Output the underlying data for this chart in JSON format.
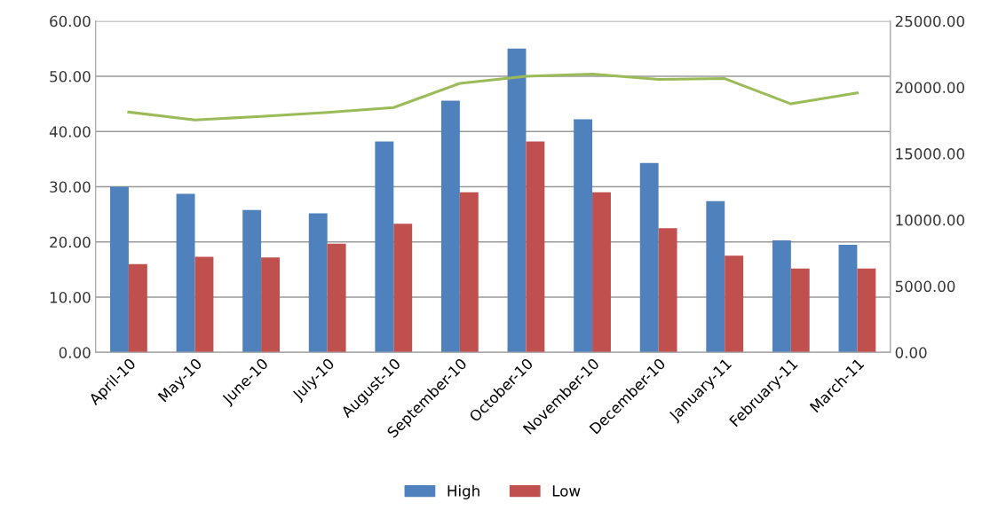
{
  "chart_data": {
    "type": "bar",
    "categories": [
      "April-10",
      "May-10",
      "June-10",
      "July-10",
      "August-10",
      "September-10",
      "October-10",
      "November-10",
      "December-10",
      "January-11",
      "February-11",
      "March-11"
    ],
    "series": [
      {
        "name": "High",
        "color": "#4f81bd",
        "values": [
          30.0,
          28.7,
          25.8,
          25.2,
          38.2,
          45.6,
          55.0,
          42.2,
          34.3,
          27.4,
          20.3,
          19.5
        ]
      },
      {
        "name": "Low",
        "color": "#c0504d",
        "values": [
          16.0,
          17.3,
          17.2,
          19.7,
          23.3,
          29.0,
          38.2,
          29.0,
          22.5,
          17.5,
          15.2,
          15.2
        ]
      },
      {
        "type": "line",
        "axis": "y2",
        "color": "#9bbb59",
        "values": [
          18130,
          17540,
          17800,
          18100,
          18470,
          20300,
          20830,
          21000,
          20600,
          20660,
          18750,
          19580
        ]
      }
    ],
    "ylim": [
      0,
      60
    ],
    "yticks": [
      {
        "value": 0,
        "label": "0.00"
      },
      {
        "value": 10,
        "label": "10.00"
      },
      {
        "value": 20,
        "label": "20.00"
      },
      {
        "value": 30,
        "label": "30.00"
      },
      {
        "value": 40,
        "label": "40.00"
      },
      {
        "value": 50,
        "label": "50.00"
      },
      {
        "value": 60,
        "label": "60.00"
      }
    ],
    "y2lim": [
      0,
      25000
    ],
    "y2ticks": [
      {
        "value": 0,
        "label": "0.00"
      },
      {
        "value": 5000,
        "label": "5000.00"
      },
      {
        "value": 10000,
        "label": "10000.00"
      },
      {
        "value": 15000,
        "label": "15000.00"
      },
      {
        "value": 20000,
        "label": "20000.00"
      },
      {
        "value": 25000,
        "label": "25000.00"
      }
    ],
    "grid": "y",
    "legend": "bottom"
  }
}
